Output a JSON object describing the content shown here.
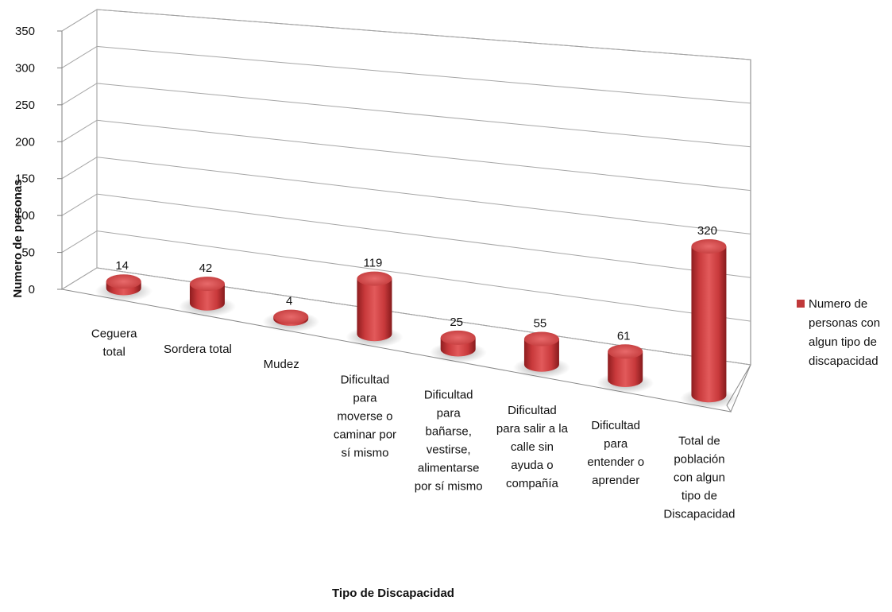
{
  "chart_data": {
    "type": "bar",
    "title": "",
    "xlabel": "Tipo de Discapacidad",
    "ylabel": "Numero de personas",
    "ylim": [
      0,
      350
    ],
    "yticks": [
      0,
      50,
      100,
      150,
      200,
      250,
      300,
      350
    ],
    "grid": true,
    "legend_position": "right",
    "categories": [
      "Ceguera total",
      "Sordera total",
      "Mudez",
      "Dificultad para moverse o caminar por sí mismo",
      "Dificultad para bañarse, vestirse, alimentarse por sí mismo",
      "Dificultad para salir a la calle sin ayuda o compañía",
      "Dificultad para entender o aprender",
      "Total de población con algun tipo de Discapacidad"
    ],
    "series": [
      {
        "name": "Numero de personas con algun tipo de discapacidad",
        "color": "#c0393a",
        "values": [
          14,
          42,
          4,
          119,
          25,
          55,
          61,
          320
        ]
      }
    ],
    "category_label_lines": [
      [
        "Ceguera",
        "total"
      ],
      [
        "Sordera total"
      ],
      [
        "Mudez"
      ],
      [
        "Dificultad",
        "para",
        "moverse o",
        "caminar por",
        "sí mismo"
      ],
      [
        "Dificultad",
        "para",
        "bañarse,",
        "vestirse,",
        "alimentarse",
        "por sí mismo"
      ],
      [
        "Dificultad",
        "para salir a la",
        "calle sin",
        "ayuda o",
        "compañía"
      ],
      [
        "Dificultad",
        "para",
        "entender o",
        "aprender"
      ],
      [
        "Total de",
        "población",
        "con algun",
        "tipo de",
        "Discapacidad"
      ]
    ],
    "legend_lines": [
      "Numero de",
      "personas con",
      "algun tipo de",
      "discapacidad"
    ]
  }
}
